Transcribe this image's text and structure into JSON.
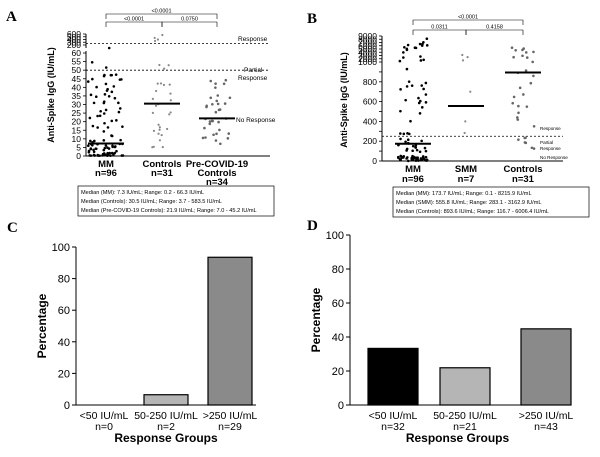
{
  "chart_data": [
    {
      "panel": "A",
      "type": "scatter",
      "ylabel": "Anti-Spike IgG (IU/mL)",
      "yticks": [
        "0",
        "5",
        "10",
        "15",
        "20",
        "25",
        "30",
        "35",
        "40",
        "45",
        "50",
        "55",
        "60",
        "200",
        "300",
        "400",
        "500",
        "600"
      ],
      "categories": [
        {
          "line1": "MM",
          "line2": "n=96",
          "median": 7.3
        },
        {
          "line1": "Controls",
          "line2": "n=31",
          "median": 30.5
        },
        {
          "line1": "Pre-COVID-19",
          "line2": "Controls",
          "line3": "n=34",
          "median": 21.9
        }
      ],
      "pvalues": [
        "<0.0001",
        "<0.0001",
        "0.0750"
      ],
      "zones": [
        "Response",
        "Partial Response",
        "No Response"
      ],
      "thresholds": [
        50,
        250
      ],
      "median_box": [
        "Median (MM): 7.3 IU/mL; Range: 0.2 - 66.3 IU/mL",
        "Median (Controls): 30.5 IU/mL; Range: 3.7 - 583.5 IU/mL",
        "Median (Pre-COVID-19 Controls): 21.9 IU/mL; Range: 7.0 - 45.2 IU/mL"
      ]
    },
    {
      "panel": "B",
      "type": "scatter",
      "ylabel": "Anti-Spike IgG (IU/mL)",
      "yticks": [
        "0",
        "100",
        "200",
        "300",
        "400",
        "500",
        "600",
        "700",
        "800",
        "900",
        "1000",
        "2000",
        "3000",
        "4000",
        "5000",
        "6000",
        "7000",
        "8000",
        "9000"
      ],
      "categories": [
        {
          "line1": "MM",
          "line2": "n=96",
          "median": 173.7
        },
        {
          "line1": "SMM",
          "line2": "n=7",
          "median": 555.8
        },
        {
          "line1": "Controls",
          "line2": "n=31",
          "median": 893.6
        }
      ],
      "pvalues": [
        "<0.0001",
        "0.0311",
        "0.4158"
      ],
      "zones": [
        "Response",
        "Partial Response",
        "No Response"
      ],
      "thresholds": [
        250
      ],
      "median_box": [
        "Median (MM): 173.7 IU/mL; Range: 0.1 - 8215.9 IU/mL",
        "Median (SMM): 555.8 IU/mL; Range: 283.1 - 3162.9 IU/mL",
        "Median (Controls): 893.6 IU/mL; Range: 116.7 - 6006.4 IU/mL"
      ]
    },
    {
      "panel": "C",
      "type": "bar",
      "ylabel": "Percentage",
      "xlabel": "Response Groups",
      "ylim": [
        0,
        100
      ],
      "yticks": [
        "0",
        "20",
        "40",
        "60",
        "80",
        "100"
      ],
      "categories": [
        {
          "line1": "<50 IU/mL",
          "line2": "n=0"
        },
        {
          "line1": "50-250 IU/mL",
          "line2": "n=2"
        },
        {
          "line1": ">250 IU/mL",
          "line2": "n=29"
        }
      ],
      "values": [
        0,
        6.5,
        93.5
      ],
      "colors": [
        "#000000",
        "#b5b5b5",
        "#8a8a8a"
      ]
    },
    {
      "panel": "D",
      "type": "bar",
      "ylabel": "Percentage",
      "xlabel": "Response Groups",
      "ylim": [
        0,
        100
      ],
      "yticks": [
        "0",
        "20",
        "40",
        "60",
        "80",
        "100"
      ],
      "categories": [
        {
          "line1": "<50 IU/mL",
          "line2": "n=32"
        },
        {
          "line1": "50-250 IU/mL",
          "line2": "n=21"
        },
        {
          "line1": ">250 IU/mL",
          "line2": "n=43"
        }
      ],
      "values": [
        33.3,
        21.9,
        44.8
      ],
      "colors": [
        "#000000",
        "#b5b5b5",
        "#8a8a8a"
      ]
    }
  ]
}
